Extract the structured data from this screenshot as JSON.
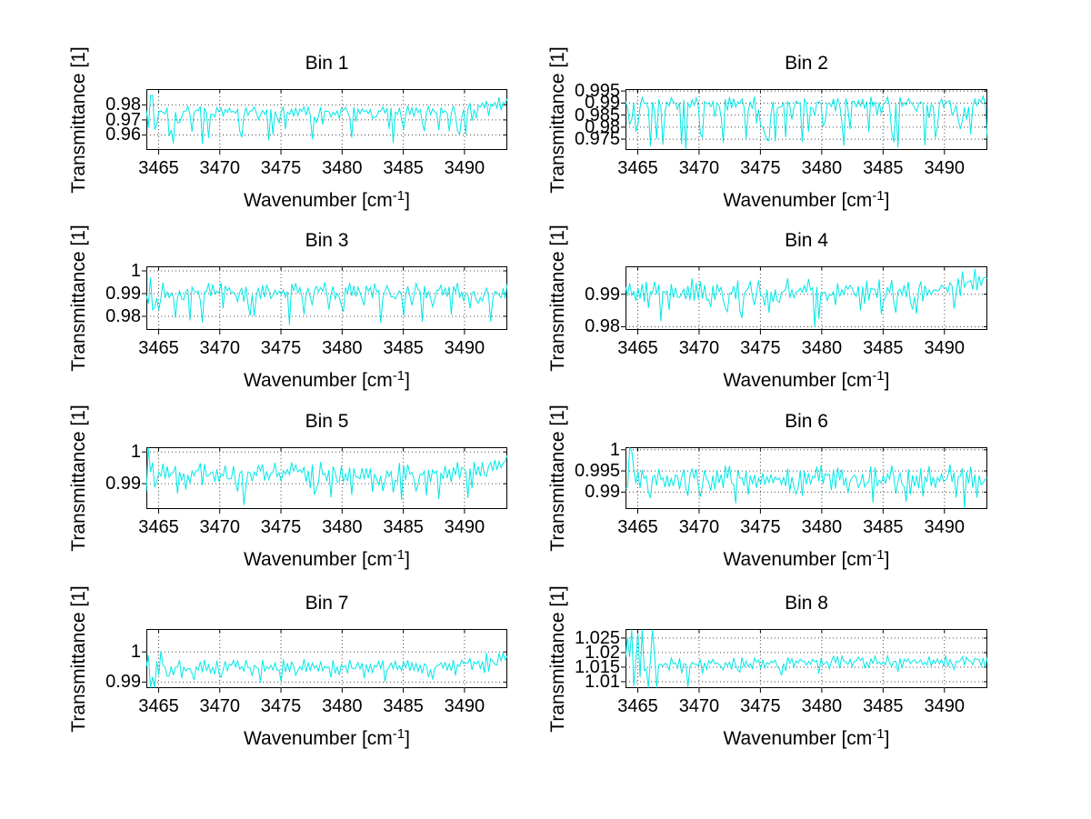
{
  "figure": {
    "background_color": "#ffffff",
    "axis_color": "#000000",
    "grid_color": "#4a4a4a",
    "line_color": "#00e8e8",
    "ylabel_text": "Transmittance [1]",
    "xlabel_pre": "Wavenumber [cm",
    "xlabel_sup": "-1",
    "xlabel_post": "]"
  },
  "chart_data": [
    {
      "type": "line",
      "title": "Bin 1",
      "xlabel": "Wavenumber [cm^-1]",
      "ylabel": "Transmittance [1]",
      "xlim": [
        3464.0,
        3493.5
      ],
      "ylim": [
        0.95,
        0.9905
      ],
      "x_ticks": [
        3465,
        3470,
        3475,
        3480,
        3485,
        3490
      ],
      "x_tick_labels": [
        "3465",
        "3470",
        "3475",
        "3480",
        "3485",
        "3490"
      ],
      "y_ticks": [
        0.96,
        0.97,
        0.98
      ],
      "y_tick_labels": [
        "0.96",
        "0.97",
        "0.98"
      ],
      "grid": true,
      "series": {
        "name": "transmittance",
        "color": "#00e8e8",
        "gen": {
          "seed": 101,
          "n": 175,
          "base": 0.9757,
          "noise": 0.0022,
          "dip_prob": 0.33,
          "dip_max": 0.021,
          "end_rise": 0.007,
          "wild_frac": 0.03,
          "wild_amp": 0.008,
          "trend": 0.0
        }
      }
    },
    {
      "type": "line",
      "title": "Bin 2",
      "xlabel": "Wavenumber [cm^-1]",
      "ylabel": "Transmittance [1]",
      "xlim": [
        3464.0,
        3493.5
      ],
      "ylim": [
        0.9705,
        0.9958
      ],
      "x_ticks": [
        3465,
        3470,
        3475,
        3480,
        3485,
        3490
      ],
      "x_tick_labels": [
        "3465",
        "3470",
        "3475",
        "3480",
        "3485",
        "3490"
      ],
      "y_ticks": [
        0.975,
        0.98,
        0.985,
        0.99,
        0.995
      ],
      "y_tick_labels": [
        "0.975",
        "0.98",
        "0.985",
        "0.99",
        "0.995"
      ],
      "grid": true,
      "series": {
        "name": "transmittance",
        "color": "#00e8e8",
        "gen": {
          "seed": 202,
          "n": 175,
          "base": 0.9903,
          "noise": 0.0016,
          "dip_prob": 0.45,
          "dip_max": 0.019,
          "end_rise": 0.0,
          "wild_frac": 0.0,
          "wild_amp": 0.0,
          "trend": 0.0
        }
      }
    },
    {
      "type": "line",
      "title": "Bin 3",
      "xlabel": "Wavenumber [cm^-1]",
      "ylabel": "Transmittance [1]",
      "xlim": [
        3464.0,
        3493.5
      ],
      "ylim": [
        0.974,
        1.002
      ],
      "x_ticks": [
        3465,
        3470,
        3475,
        3480,
        3485,
        3490
      ],
      "x_tick_labels": [
        "3465",
        "3470",
        "3475",
        "3480",
        "3485",
        "3490"
      ],
      "y_ticks": [
        0.98,
        0.99,
        1.0
      ],
      "y_tick_labels": [
        "0.98",
        "0.99",
        "1"
      ],
      "grid": true,
      "series": {
        "name": "transmittance",
        "color": "#00e8e8",
        "gen": {
          "seed": 303,
          "n": 175,
          "base": 0.9912,
          "noise": 0.0022,
          "dip_prob": 0.36,
          "dip_max": 0.013,
          "end_rise": 0.0,
          "wild_frac": 0.015,
          "wild_amp": 0.009,
          "trend": 0.0
        }
      }
    },
    {
      "type": "line",
      "title": "Bin 4",
      "xlabel": "Wavenumber [cm^-1]",
      "ylabel": "Transmittance [1]",
      "xlim": [
        3464.0,
        3493.5
      ],
      "ylim": [
        0.979,
        0.9986
      ],
      "x_ticks": [
        3465,
        3470,
        3475,
        3480,
        3485,
        3490
      ],
      "x_tick_labels": [
        "3465",
        "3470",
        "3475",
        "3480",
        "3485",
        "3490"
      ],
      "y_ticks": [
        0.98,
        0.99
      ],
      "y_tick_labels": [
        "0.98",
        "0.99"
      ],
      "grid": true,
      "series": {
        "name": "transmittance",
        "color": "#00e8e8",
        "gen": {
          "seed": 404,
          "n": 175,
          "base": 0.9913,
          "noise": 0.0022,
          "dip_prob": 0.34,
          "dip_max": 0.0095,
          "end_rise": 0.004,
          "wild_frac": 0.0,
          "wild_amp": 0.0,
          "trend": 0.0
        }
      }
    },
    {
      "type": "line",
      "title": "Bin 5",
      "xlabel": "Wavenumber [cm^-1]",
      "ylabel": "Transmittance [1]",
      "xlim": [
        3464.0,
        3493.5
      ],
      "ylim": [
        0.982,
        1.0015
      ],
      "x_ticks": [
        3465,
        3470,
        3475,
        3480,
        3485,
        3490
      ],
      "x_tick_labels": [
        "3465",
        "3470",
        "3475",
        "3480",
        "3485",
        "3490"
      ],
      "y_ticks": [
        0.99,
        1.0
      ],
      "y_tick_labels": [
        "0.99",
        "1"
      ],
      "grid": true,
      "series": {
        "name": "transmittance",
        "color": "#00e8e8",
        "gen": {
          "seed": 505,
          "n": 175,
          "base": 0.9936,
          "noise": 0.0019,
          "dip_prob": 0.32,
          "dip_max": 0.0075,
          "end_rise": 0.0035,
          "wild_frac": 0.02,
          "wild_amp": 0.007,
          "trend": 0.0
        }
      }
    },
    {
      "type": "line",
      "title": "Bin 6",
      "xlabel": "Wavenumber [cm^-1]",
      "ylabel": "Transmittance [1]",
      "xlim": [
        3464.0,
        3493.5
      ],
      "ylim": [
        0.986,
        1.0006
      ],
      "x_ticks": [
        3465,
        3470,
        3475,
        3480,
        3485,
        3490
      ],
      "x_tick_labels": [
        "3465",
        "3470",
        "3475",
        "3480",
        "3485",
        "3490"
      ],
      "y_ticks": [
        0.99,
        0.995,
        1.0
      ],
      "y_tick_labels": [
        "0.99",
        "0.995",
        "1"
      ],
      "grid": true,
      "series": {
        "name": "transmittance",
        "color": "#00e8e8",
        "gen": {
          "seed": 606,
          "n": 175,
          "base": 0.9937,
          "noise": 0.0017,
          "dip_prob": 0.32,
          "dip_max": 0.006,
          "end_rise": 0.0,
          "wild_frac": 0.02,
          "wild_amp": 0.0065,
          "trend": 0.0
        }
      }
    },
    {
      "type": "line",
      "title": "Bin 7",
      "xlabel": "Wavenumber [cm^-1]",
      "ylabel": "Transmittance [1]",
      "xlim": [
        3464.0,
        3493.5
      ],
      "ylim": [
        0.988,
        1.0076
      ],
      "x_ticks": [
        3465,
        3470,
        3475,
        3480,
        3485,
        3490
      ],
      "x_tick_labels": [
        "3465",
        "3470",
        "3475",
        "3480",
        "3485",
        "3490"
      ],
      "y_ticks": [
        0.99,
        1.0
      ],
      "y_tick_labels": [
        "0.99",
        "1"
      ],
      "grid": true,
      "series": {
        "name": "transmittance",
        "color": "#00e8e8",
        "gen": {
          "seed": 707,
          "n": 175,
          "base": 0.9952,
          "noise": 0.0014,
          "dip_prob": 0.3,
          "dip_max": 0.0045,
          "end_rise": 0.0035,
          "wild_frac": 0.045,
          "wild_amp": 0.0085,
          "trend": 0.0
        }
      }
    },
    {
      "type": "line",
      "title": "Bin 8",
      "xlabel": "Wavenumber [cm^-1]",
      "ylabel": "Transmittance [1]",
      "xlim": [
        3464.0,
        3493.5
      ],
      "ylim": [
        1.0078,
        1.0281
      ],
      "x_ticks": [
        3465,
        3470,
        3475,
        3480,
        3485,
        3490
      ],
      "x_tick_labels": [
        "3465",
        "3470",
        "3475",
        "3480",
        "3485",
        "3490"
      ],
      "y_ticks": [
        1.01,
        1.015,
        1.02,
        1.025
      ],
      "y_tick_labels": [
        "1.01",
        "1.015",
        "1.02",
        "1.025"
      ],
      "grid": true,
      "series": {
        "name": "transmittance",
        "color": "#00e8e8",
        "gen": {
          "seed": 808,
          "n": 175,
          "base": 1.0158,
          "noise": 0.0013,
          "dip_prob": 0.28,
          "dip_max": 0.004,
          "end_rise": 0.0,
          "wild_frac": 0.09,
          "wild_amp": 0.0095,
          "trend": 0.0018,
          "deep_dip": [
            0.17,
            1.0082
          ]
        }
      }
    }
  ]
}
